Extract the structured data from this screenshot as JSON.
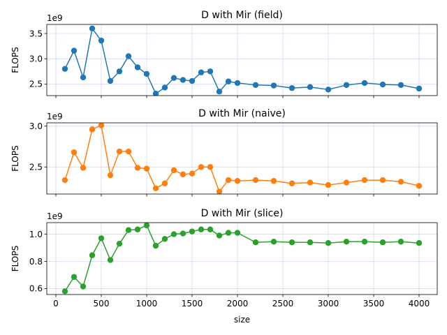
{
  "chart_data": [
    {
      "type": "line",
      "title": "D with Mir (field)",
      "ylabel": "FLOPS",
      "offset_label": "1e9",
      "color": "#1f77b4",
      "marker": "circle",
      "grid": true,
      "xlim": [
        -100,
        4200
      ],
      "ylim": [
        2.27,
        3.68
      ],
      "yticks": [
        2.5,
        3.0,
        3.5
      ],
      "ytick_labels": [
        "2.5",
        "3.0",
        "3.5"
      ],
      "x": [
        100,
        200,
        300,
        400,
        500,
        600,
        700,
        800,
        900,
        1000,
        1100,
        1200,
        1300,
        1400,
        1500,
        1600,
        1700,
        1800,
        1900,
        2000,
        2200,
        2400,
        2600,
        2800,
        3000,
        3200,
        3400,
        3600,
        3800,
        4000
      ],
      "y": [
        2.8,
        3.16,
        2.63,
        3.6,
        3.36,
        2.56,
        2.75,
        3.05,
        2.83,
        2.7,
        2.31,
        2.43,
        2.62,
        2.58,
        2.56,
        2.73,
        2.75,
        2.35,
        2.55,
        2.52,
        2.48,
        2.47,
        2.42,
        2.44,
        2.39,
        2.48,
        2.52,
        2.49,
        2.48,
        2.41
      ]
    },
    {
      "type": "line",
      "title": "D with Mir (naive)",
      "ylabel": "FLOPS",
      "offset_label": "1e9",
      "color": "#ff7f0e",
      "marker": "circle",
      "grid": true,
      "xlim": [
        -100,
        4200
      ],
      "ylim": [
        2.17,
        3.04
      ],
      "yticks": [
        2.5,
        3.0
      ],
      "ytick_labels": [
        "2.5",
        "3.0"
      ],
      "x": [
        100,
        200,
        300,
        400,
        500,
        600,
        700,
        800,
        900,
        1000,
        1100,
        1200,
        1300,
        1400,
        1500,
        1600,
        1700,
        1800,
        1900,
        2000,
        2200,
        2400,
        2600,
        2800,
        3000,
        3200,
        3400,
        3600,
        3800,
        4000
      ],
      "y": [
        2.34,
        2.68,
        2.49,
        2.96,
        3.01,
        2.4,
        2.69,
        2.69,
        2.49,
        2.48,
        2.24,
        2.3,
        2.46,
        2.41,
        2.42,
        2.5,
        2.5,
        2.2,
        2.34,
        2.33,
        2.34,
        2.33,
        2.3,
        2.31,
        2.28,
        2.31,
        2.34,
        2.34,
        2.32,
        2.27
      ]
    },
    {
      "type": "line",
      "title": "D with Mir (slice)",
      "ylabel": "FLOPS",
      "xlabel": "size",
      "offset_label": "1e9",
      "color": "#2ca02c",
      "marker": "circle",
      "grid": true,
      "xlim": [
        -100,
        4200
      ],
      "ylim": [
        0.556,
        1.085
      ],
      "yticks": [
        0.6,
        0.8,
        1.0
      ],
      "ytick_labels": [
        "0.6",
        "0.8",
        "1.0"
      ],
      "xticks": [
        0,
        500,
        1000,
        1500,
        2000,
        2500,
        3000,
        3500,
        4000
      ],
      "xtick_labels": [
        "0",
        "500",
        "1000",
        "1500",
        "2000",
        "2500",
        "3000",
        "3500",
        "4000"
      ],
      "x": [
        100,
        200,
        300,
        400,
        500,
        600,
        700,
        800,
        900,
        1000,
        1100,
        1200,
        1300,
        1400,
        1500,
        1600,
        1700,
        1800,
        1900,
        2000,
        2200,
        2400,
        2600,
        2800,
        3000,
        3200,
        3400,
        3600,
        3800,
        4000
      ],
      "y": [
        0.58,
        0.685,
        0.615,
        0.845,
        0.97,
        0.81,
        0.93,
        1.03,
        1.035,
        1.065,
        0.915,
        0.965,
        1.0,
        1.005,
        1.02,
        1.035,
        1.035,
        0.99,
        1.01,
        1.01,
        0.94,
        0.945,
        0.94,
        0.94,
        0.935,
        0.945,
        0.945,
        0.94,
        0.945,
        0.935
      ]
    }
  ]
}
